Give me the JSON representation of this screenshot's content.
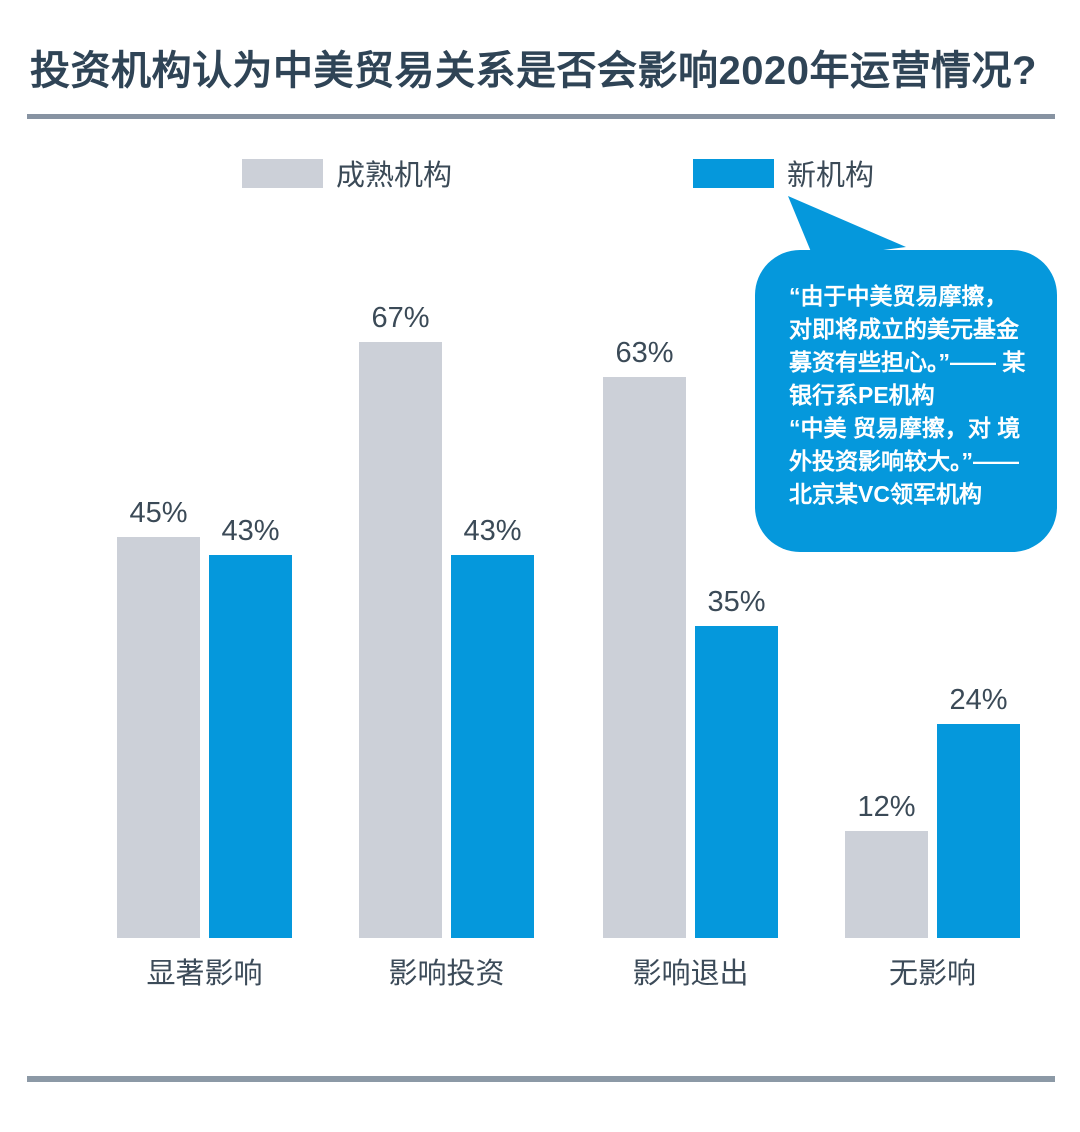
{
  "page": {
    "title": "投资机构认为中美贸易关系是否会影响2020年运营情况?",
    "colors": {
      "accent_blue": "#0598DC",
      "bar_gray": "#CCD0D8",
      "title_text": "#2F4456",
      "label_text": "#3B4A57",
      "divider": "#8793A2",
      "bubble_text": "#FFFFFF"
    }
  },
  "legend": {
    "items": [
      {
        "label": "成熟机构",
        "color": "#CCD0D8"
      },
      {
        "label": "新机构",
        "color": "#0598DC"
      }
    ]
  },
  "callout": {
    "text": "“由于中美贸易摩擦，\n对即将成立的美元基金\n募资有些担心。”—— 某\n银行系PE机构\n“中美 贸易摩擦，对 境\n外投资影响较大。”——\n北京某VC领军机构"
  },
  "chart_data": {
    "type": "bar",
    "title": "投资机构认为中美贸易关系是否会影响2020年运营情况?",
    "categories": [
      "显著影响",
      "影响投资",
      "影响退出",
      "无影响"
    ],
    "series": [
      {
        "name": "成熟机构",
        "color": "#CCD0D8",
        "values": [
          45,
          67,
          63,
          12
        ]
      },
      {
        "name": "新机构",
        "color": "#0598DC",
        "values": [
          43,
          43,
          35,
          24
        ]
      }
    ],
    "unit": "%",
    "value_labels": [
      [
        "45%",
        "67%",
        "63%",
        "12%"
      ],
      [
        "43%",
        "43%",
        "35%",
        "24%"
      ]
    ],
    "axes_visible": false,
    "grid": false,
    "legend_position": "top",
    "annotation": "“由于中美贸易摩擦，对即将成立的美元基金募资有些担心。”—— 某银行系PE机构 “中美 贸易摩擦，对 境外投资影响较大。”——北京某VC领军机构"
  }
}
